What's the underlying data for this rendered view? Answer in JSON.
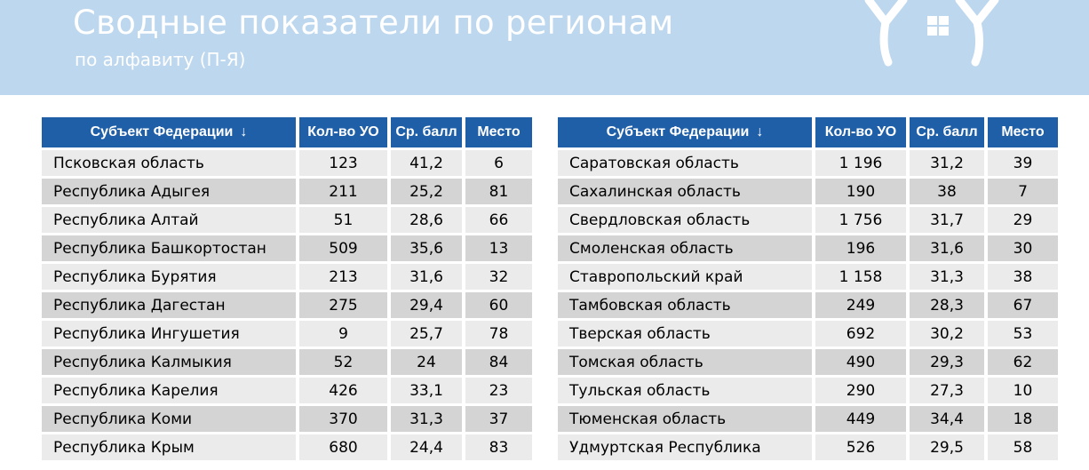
{
  "header": {
    "title": "Сводные показатели по регионам",
    "subtitle": "по алфавиту (П-Я)"
  },
  "columns": {
    "subject": "Субъект Федерации",
    "sort_arrow": "↓",
    "count": "Кол-во УО",
    "avg": "Ср. балл",
    "place": "Место"
  },
  "left_table": [
    {
      "name": "Псковская область",
      "count": "123",
      "avg": "41,2",
      "place": "6"
    },
    {
      "name": "Республика Адыгея",
      "count": "211",
      "avg": "25,2",
      "place": "81"
    },
    {
      "name": "Республика Алтай",
      "count": "51",
      "avg": "28,6",
      "place": "66"
    },
    {
      "name": "Республика Башкортостан",
      "count": "509",
      "avg": "35,6",
      "place": "13"
    },
    {
      "name": "Республика Бурятия",
      "count": "213",
      "avg": "31,6",
      "place": "32"
    },
    {
      "name": "Республика Дагестан",
      "count": "275",
      "avg": "29,4",
      "place": "60"
    },
    {
      "name": "Республика Ингушетия",
      "count": "9",
      "avg": "25,7",
      "place": "78"
    },
    {
      "name": "Республика Калмыкия",
      "count": "52",
      "avg": "24",
      "place": "84"
    },
    {
      "name": "Республика Карелия",
      "count": "426",
      "avg": "33,1",
      "place": "23"
    },
    {
      "name": "Республика Коми",
      "count": "370",
      "avg": "31,3",
      "place": "37"
    },
    {
      "name": "Республика Крым",
      "count": "680",
      "avg": "24,4",
      "place": "83"
    }
  ],
  "right_table": [
    {
      "name": "Саратовская область",
      "count": "1 196",
      "avg": "31,2",
      "place": "39"
    },
    {
      "name": "Сахалинская область",
      "count": "190",
      "avg": "38",
      "place": "7"
    },
    {
      "name": "Свердловская область",
      "count": "1 756",
      "avg": "31,7",
      "place": "29"
    },
    {
      "name": "Смоленская область",
      "count": "196",
      "avg": "31,6",
      "place": "30"
    },
    {
      "name": "Ставропольский край",
      "count": "1 158",
      "avg": "31,3",
      "place": "38"
    },
    {
      "name": "Тамбовская область",
      "count": "249",
      "avg": "28,3",
      "place": "67"
    },
    {
      "name": "Тверская область",
      "count": "692",
      "avg": "30,2",
      "place": "53"
    },
    {
      "name": "Томская область",
      "count": "490",
      "avg": "29,3",
      "place": "62"
    },
    {
      "name": "Тульская область",
      "count": "290",
      "avg": "27,3",
      "place": "10"
    },
    {
      "name": "Тюменская область",
      "count": "449",
      "avg": "34,4",
      "place": "18"
    },
    {
      "name": "Удмуртская Республика",
      "count": "526",
      "avg": "29,5",
      "place": "58"
    }
  ],
  "colors": {
    "banner": "#bdd7ee",
    "header_fill": "#1f5fa8",
    "row_light": "#ebebeb",
    "row_dark": "#d4d4d4"
  },
  "icons": {
    "logo": "house-with-people-icon"
  }
}
